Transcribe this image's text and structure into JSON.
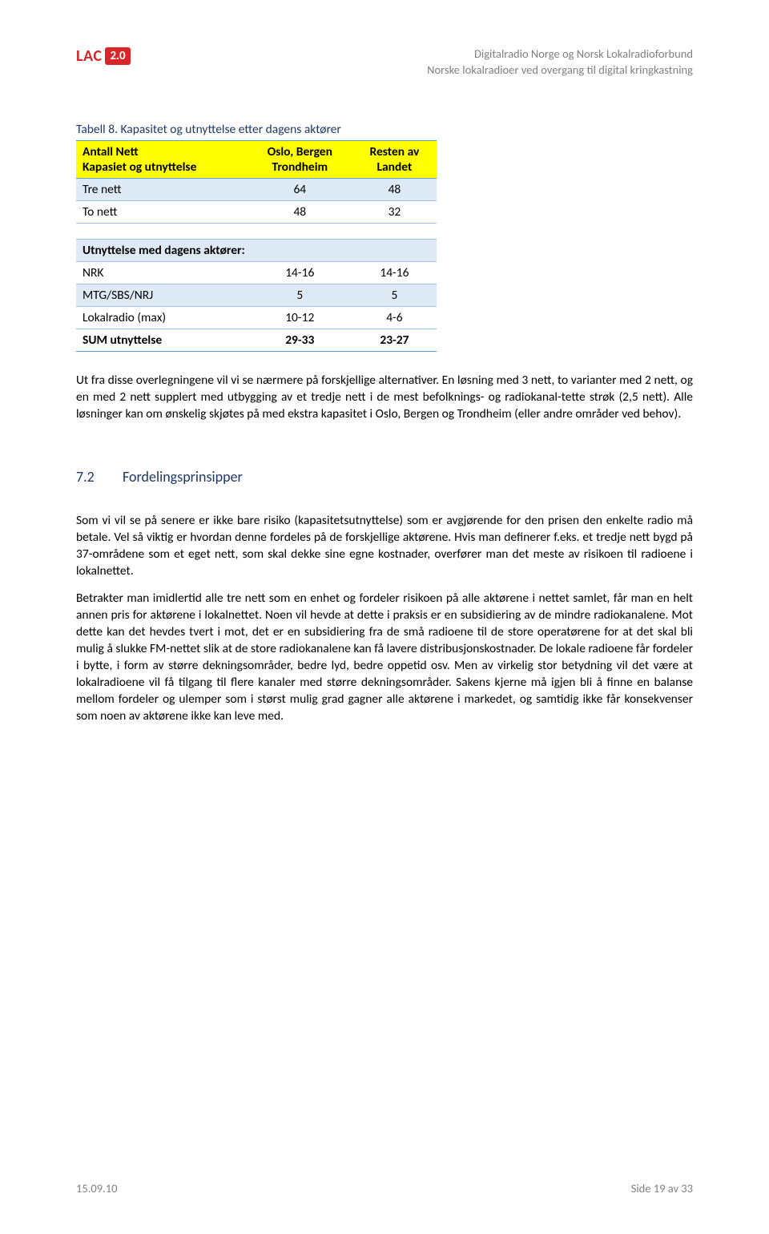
{
  "header": {
    "logo_lac": "LAC",
    "logo_version": "2.0",
    "line1": "Digitalradio Norge og Norsk Lokalradioforbund",
    "line2": "Norske lokalradioer ved overgang til digital kringkastning"
  },
  "table": {
    "caption": "Tabell 8. Kapasitet og utnyttelse etter dagens aktører",
    "head_col0a": "Antall Nett",
    "head_col0b": "Kapasiet og utnyttelse",
    "head_col1a": "Oslo, Bergen",
    "head_col1b": "Trondheim",
    "head_col2a": "Resten av",
    "head_col2b": "Landet",
    "rows_top": [
      {
        "label": "Tre nett",
        "c1": "64",
        "c2": "48"
      },
      {
        "label": "To nett",
        "c1": "48",
        "c2": "32"
      }
    ],
    "subhead": "Utnyttelse med dagens aktører:",
    "rows_bot": [
      {
        "label": "NRK",
        "c1": "14-16",
        "c2": "14-16"
      },
      {
        "label": "MTG/SBS/NRJ",
        "c1": "5",
        "c2": "5"
      },
      {
        "label": "Lokalradio (max)",
        "c1": "10-12",
        "c2": "4-6"
      }
    ],
    "sum": {
      "label": "SUM utnyttelse",
      "c1": "29-33",
      "c2": "23-27"
    },
    "colors": {
      "header_bg": "#ffff00",
      "row_alt_bg": "#deeaf6",
      "border": "#9cc2e5",
      "border_strong": "#5b9bd5",
      "caption_color": "#1f3864"
    }
  },
  "paragraphs": {
    "p1": "Ut fra disse overlegningene vil vi se nærmere på forskjellige alternativer. En løsning med 3 nett, to varianter med 2 nett, og en med 2 nett supplert med utbygging av et tredje nett i de mest befolknings- og radiokanal-tette strøk (2,5 nett). Alle løsninger kan om ønskelig skjøtes på med ekstra kapasitet i Oslo, Bergen og Trondheim (eller andre områder ved behov).",
    "p2": "Som vi vil se på senere er ikke bare risiko (kapasitetsutnyttelse) som er avgjørende for den prisen den enkelte radio må betale. Vel så viktig er hvordan denne fordeles på de forskjellige aktørene. Hvis man definerer f.eks. et tredje nett bygd på 37-områdene som et eget nett, som skal dekke sine egne kostnader, overfører man det meste av risikoen til radioene i lokalnettet.",
    "p3": "Betrakter man imidlertid alle tre nett som en enhet og fordeler risikoen på alle aktørene i nettet samlet, får man en helt annen pris for aktørene i lokalnettet. Noen vil hevde at dette i praksis er en subsidiering av de mindre radiokanalene. Mot dette kan det hevdes tvert i mot, det er en subsidiering fra de små radioene til de store operatørene for at det skal bli mulig å slukke FM-nettet slik at de store radiokanalene kan få lavere distribusjonskostnader. De lokale radioene får fordeler i bytte, i form av større dekningsområder, bedre lyd, bedre oppetid osv. Men av virkelig stor betydning vil det være at lokalradioene vil få tilgang til flere kanaler med større dekningsområder. Sakens kjerne må igjen bli å finne en balanse mellom fordeler og ulemper som i størst mulig grad gagner alle aktørene i markedet, og samtidig ikke får konsekvenser som noen av aktørene ikke kan leve med."
  },
  "section": {
    "number": "7.2",
    "title": "Fordelingsprinsipper"
  },
  "footer": {
    "date": "15.09.10",
    "page": "Side 19 av 33"
  }
}
